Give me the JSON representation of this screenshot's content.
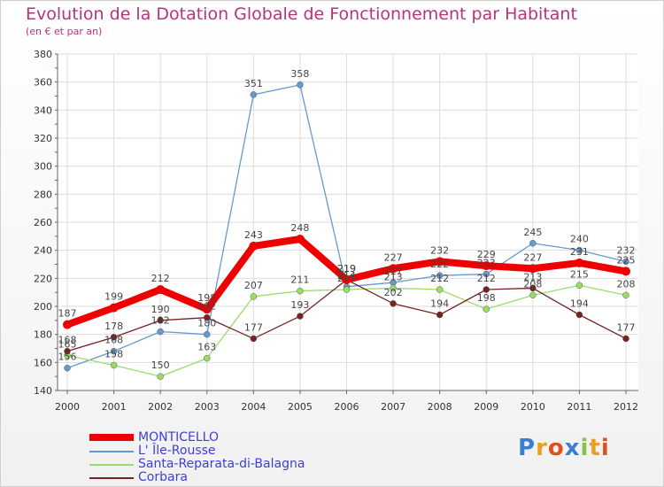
{
  "title": "Evolution de la Dotation Globale de Fonctionnement par Habitant",
  "subtitle": "(en € et par an)",
  "logo": "Proxiti",
  "chart_data": {
    "type": "line",
    "title": "Evolution de la Dotation Globale de Fonctionnement par Habitant",
    "subtitle": "(en € et par an)",
    "x": [
      "2000",
      "2001",
      "2002",
      "2003",
      "2004",
      "2005",
      "2006",
      "2007",
      "2008",
      "2009",
      "2010",
      "2011",
      "2012"
    ],
    "ylim": [
      140,
      380
    ],
    "yticks": [
      140,
      160,
      180,
      200,
      220,
      240,
      260,
      280,
      300,
      320,
      340,
      360,
      380
    ],
    "grid": true,
    "legend": "bottom-left",
    "series": [
      {
        "name": "MONTICELLO",
        "color": "#ee0000",
        "values": [
          187,
          199,
          212,
          198,
          243,
          248,
          219,
          227,
          232,
          229,
          227,
          231,
          225
        ]
      },
      {
        "name": "L' Île-Rousse",
        "color": "#6699cc",
        "values": [
          156,
          168,
          182,
          180,
          351,
          358,
          214,
          217,
          222,
          223,
          245,
          240,
          232
        ]
      },
      {
        "name": "Santa-Reparata-di-Balagna",
        "color": "#99dd66",
        "values": [
          165,
          158,
          150,
          163,
          207,
          211,
          212,
          213,
          212,
          198,
          208,
          215,
          208
        ]
      },
      {
        "name": "Corbara",
        "color": "#772222",
        "values": [
          168,
          178,
          190,
          192,
          177,
          193,
          219,
          202,
          194,
          212,
          213,
          194,
          177
        ]
      }
    ]
  }
}
